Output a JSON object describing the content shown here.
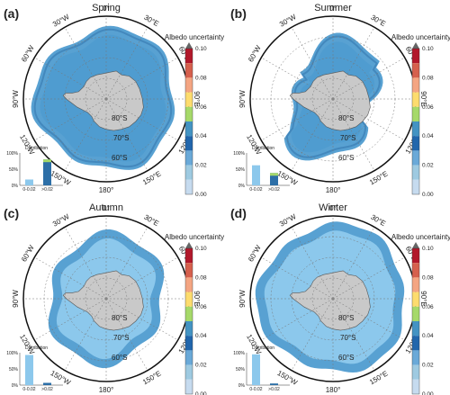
{
  "figure": {
    "colorbar_title": "Albedo uncertainty",
    "colorbar_ticks": [
      "0.10",
      "0.08",
      "0.06",
      "0.04",
      "0.02",
      "0.00"
    ],
    "colorbar_colors": [
      "#b2182b",
      "#d6604d",
      "#f4a582",
      "#fddc6e",
      "#a6d96a",
      "#4393c3",
      "#2166ac",
      "#6aa9d8",
      "#9ecae1",
      "#c6dbef"
    ],
    "accent_ice_light": "#8cc8ec",
    "accent_ice_mid": "#4f9cd0",
    "accent_ice_dark": "#2d6fa7",
    "land_color": "#c9c9c9",
    "longitude_labels": [
      "0°",
      "30°E",
      "60°E",
      "90°E",
      "120°E",
      "150°E",
      "180°",
      "150°W",
      "120°W",
      "90°W",
      "60°W",
      "30°W"
    ],
    "latitude_labels": [
      "80°S",
      "70°S",
      "60°S"
    ],
    "distribution_title": "Distribution",
    "distribution_y_ticks": [
      "100%",
      "50%",
      "0%"
    ],
    "distribution_x_ticks": [
      "0-0.02",
      ">0.02"
    ]
  },
  "panels": [
    {
      "tag": "(a)",
      "season": "Spring",
      "dist": [
        0.18,
        0.8
      ]
    },
    {
      "tag": "(b)",
      "season": "Summer",
      "dist": [
        0.62,
        0.38
      ]
    },
    {
      "tag": "(c)",
      "season": "Autumn",
      "dist": [
        0.93,
        0.07
      ]
    },
    {
      "tag": "(d)",
      "season": "Winter",
      "dist": [
        0.95,
        0.05
      ]
    }
  ]
}
